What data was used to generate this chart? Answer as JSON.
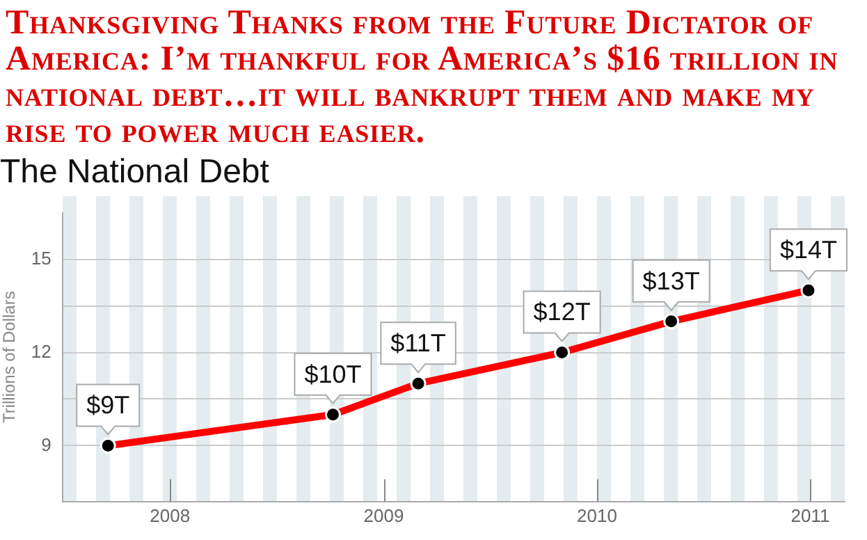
{
  "chart_data": {
    "type": "line",
    "title": "Thanksgiving Thanks from the Future Dictator of America:  I’m thankful for America’s $16 trillion in national debt…it will bankrupt them and make my rise to power much easier.",
    "subtitle": "The National Debt",
    "ylabel": "Trillions of Dollars",
    "x": [
      "2007-09-17",
      "2008-10-06",
      "2009-03-01",
      "2009-11-02",
      "2010-05-08",
      "2010-12-29"
    ],
    "series": [
      {
        "color": "#ff0000",
        "values": [
          9,
          10,
          11,
          12,
          13,
          14
        ],
        "value_labels": [
          "$9T",
          "$10T",
          "$11T",
          "$12T",
          "$13T",
          "$14T"
        ]
      }
    ],
    "xlim": [
      "2007-07-01",
      "2011-03-01"
    ],
    "xticks": [
      "2008",
      "2009",
      "2010",
      "2011"
    ],
    "ylim": [
      7.2,
      16.5
    ],
    "yticks": [
      9,
      {
        "value": 10.5,
        "label": null
      },
      12,
      {
        "value": 13.5,
        "label": null
      },
      15
    ],
    "grid": "y",
    "legend": false,
    "marker": "circle",
    "line_style": "solid"
  }
}
